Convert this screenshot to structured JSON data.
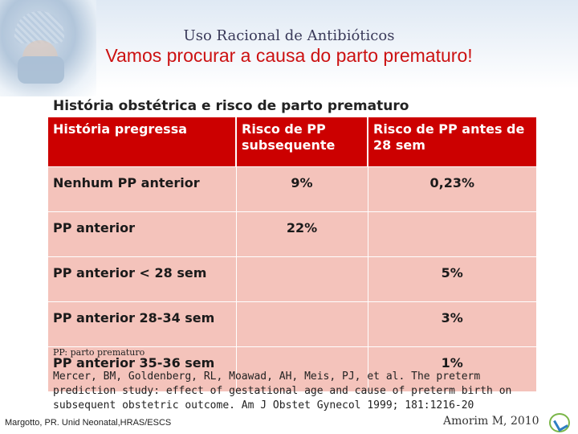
{
  "header": {
    "title": "Uso Racional de Antibióticos",
    "subtitle": "Vamos procurar a causa do parto prematuro!"
  },
  "section": {
    "heading": "História obstétrica e risco de parto prematuro"
  },
  "table": {
    "columns": [
      "História pregressa",
      "Risco de PP subsequente",
      "Risco de PP antes de 28 sem"
    ],
    "rows": [
      [
        "Nenhum PP anterior",
        "9%",
        "0,23%"
      ],
      [
        "PP anterior",
        "22%",
        ""
      ],
      [
        "PP anterior < 28 sem",
        "",
        "5%"
      ],
      [
        "PP anterior 28-34 sem",
        "",
        "3%"
      ],
      [
        "PP anterior 35-36 sem",
        "",
        "1%"
      ]
    ]
  },
  "footnote": {
    "abbreviation": "PP: parto prematuro",
    "reference": "Mercer, BM, Goldenberg, RL, Moawad, AH, Meis, PJ, et al. The preterm prediction study: effect of gestational age and cause of preterm birth on subsequent obstetric outcome. Am J Obstet Gynecol 1999; 181:1216-20"
  },
  "credits": {
    "left": "Margotto, PR. Unid Neonatal,HRAS/ESCS",
    "right": "Amorim M, 2010"
  },
  "colors": {
    "header_red": "#cc0000",
    "cell_pink": "#f4c3bb",
    "subtitle_red": "#cc1111"
  },
  "icons": {
    "photo": "surgeon-photo",
    "logo": "institution-logo-icon"
  }
}
